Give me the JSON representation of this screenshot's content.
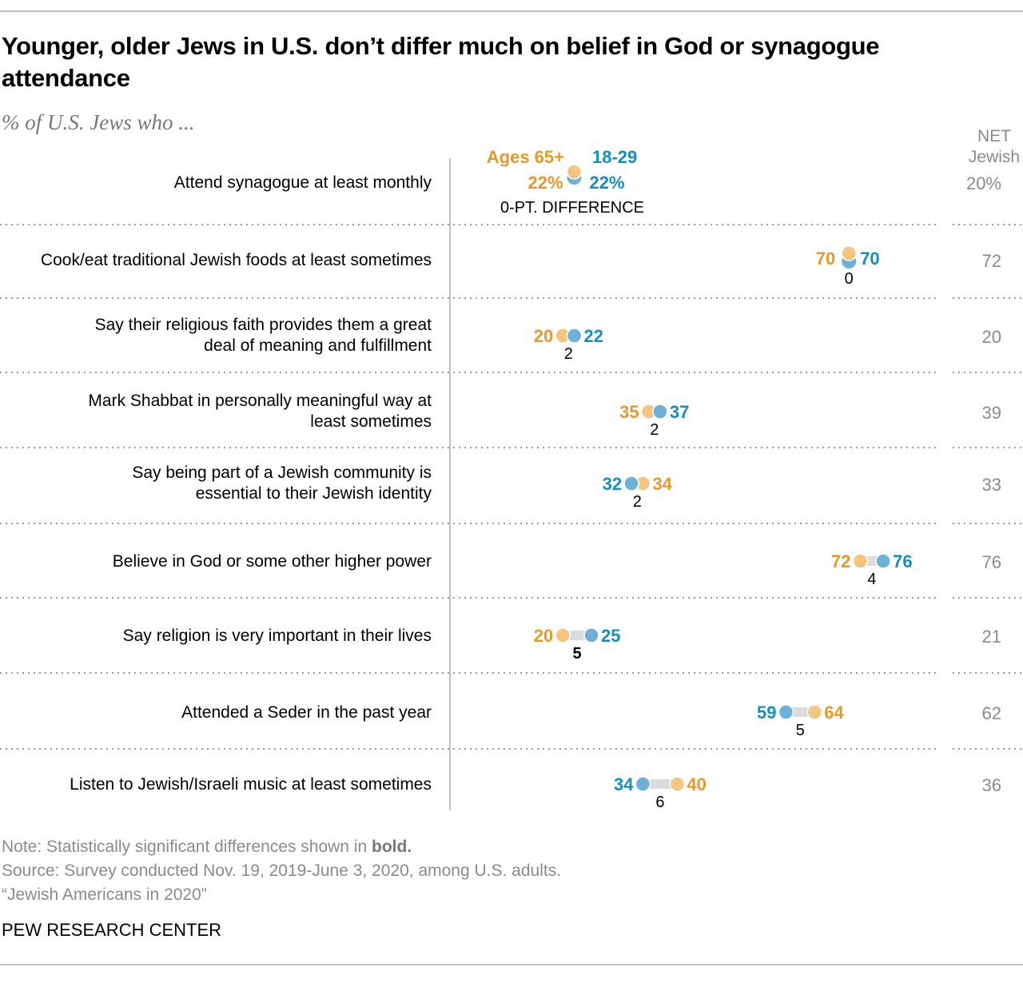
{
  "title": "Younger, older Jews in U.S. don’t differ much on belief in God or synagogue attendance",
  "subtitle": "% of U.S. Jews who ...",
  "chart_data": {
    "type": "dot-plot",
    "xlim": [
      0,
      100
    ],
    "legend": {
      "older": "Ages 65+",
      "younger": "18-29",
      "difference_label": "0-PT. DIFFERENCE"
    },
    "net_header": "NET Jewish",
    "colors": {
      "older_text": "#E8982A",
      "older_dot": "#F3C580",
      "younger_text": "#1190C0",
      "younger_dot": "#6DB1DA",
      "connector": "#dcdcdc"
    },
    "rows": [
      {
        "label": "Attend synagogue at least monthly",
        "older": 22,
        "younger": 22,
        "older_label": "22%",
        "younger_label": "22%",
        "diff": "0",
        "significant": false,
        "net": "20%"
      },
      {
        "label": "Cook/eat traditional Jewish foods at least sometimes",
        "older": 70,
        "younger": 70,
        "older_label": "70",
        "younger_label": "70",
        "diff": "0",
        "significant": false,
        "net": "72"
      },
      {
        "label": "Say their religious faith provides them a great deal of meaning and fulfillment",
        "older": 20,
        "younger": 22,
        "older_label": "20",
        "younger_label": "22",
        "diff": "2",
        "significant": false,
        "net": "20"
      },
      {
        "label": "Mark Shabbat in personally meaningful way at least sometimes",
        "older": 35,
        "younger": 37,
        "older_label": "35",
        "younger_label": "37",
        "diff": "2",
        "significant": false,
        "net": "39"
      },
      {
        "label": "Say being part of a Jewish community is essential to their Jewish identity",
        "older": 34,
        "younger": 32,
        "older_label": "34",
        "younger_label": "32",
        "diff": "2",
        "significant": false,
        "net": "33"
      },
      {
        "label": "Believe in God or some other higher power",
        "older": 72,
        "younger": 76,
        "older_label": "72",
        "younger_label": "76",
        "diff": "4",
        "significant": false,
        "net": "76"
      },
      {
        "label": "Say religion is very important in their lives",
        "older": 20,
        "younger": 25,
        "older_label": "20",
        "younger_label": "25",
        "diff": "5",
        "significant": true,
        "net": "21"
      },
      {
        "label": "Attended a Seder in the past year",
        "older": 64,
        "younger": 59,
        "older_label": "64",
        "younger_label": "59",
        "diff": "5",
        "significant": false,
        "net": "62"
      },
      {
        "label": "Listen to Jewish/Israeli music at least sometimes",
        "older": 40,
        "younger": 34,
        "older_label": "40",
        "younger_label": "34",
        "diff": "6",
        "significant": false,
        "net": "36"
      }
    ]
  },
  "footer": {
    "note_prefix": "Note: Statistically significant differences shown in ",
    "note_bold": "bold.",
    "source": "Source: Survey conducted Nov. 19, 2019-June 3, 2020, among U.S. adults.",
    "report": "“Jewish Americans in 2020”",
    "brand": "PEW RESEARCH CENTER"
  }
}
